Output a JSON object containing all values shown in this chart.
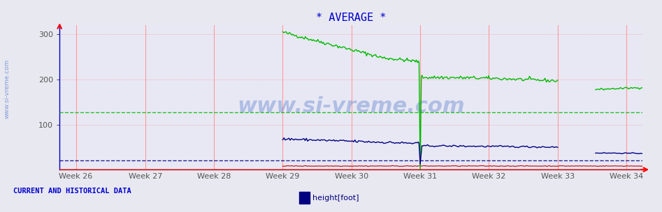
{
  "title": "* AVERAGE *",
  "title_color": "#0000cc",
  "title_fontsize": 11,
  "bg_color": "#e8e8f0",
  "plot_bg_color": "#e8e8f4",
  "ylim": [
    0,
    320
  ],
  "yticks": [
    100,
    200,
    300
  ],
  "week_labels": [
    "Week 26",
    "Week 27",
    "Week 28",
    "Week 29",
    "Week 30",
    "Week 31",
    "Week 32",
    "Week 33",
    "Week 34"
  ],
  "week_positions": [
    0.028,
    0.147,
    0.265,
    0.383,
    0.501,
    0.619,
    0.737,
    0.855,
    0.973
  ],
  "vline_positions": [
    0.028,
    0.147,
    0.265,
    0.383,
    0.501,
    0.619,
    0.737,
    0.855,
    0.973
  ],
  "green_hline_y": 127,
  "blue_hline_y": 20,
  "watermark": "www.si-vreme.com",
  "watermark_color": "#3060c0",
  "watermark_alpha": 0.3,
  "legend_label": "height[foot]",
  "legend_color": "#000080",
  "footer_left": "CURRENT AND HISTORICAL DATA",
  "footer_color": "#0000cc",
  "sidebar_text": "www.si-vreme.com",
  "sidebar_color": "#3060c0",
  "green_line_color": "#00bb00",
  "blue_line_color": "#000080",
  "red_line_color": "#cc0000",
  "axis_color": "#0000cc",
  "grid_color": "#ccccdd",
  "vline_color": "#ff9999",
  "bottom_line_color": "#cc0000",
  "spine_left_color": "#0000cc"
}
